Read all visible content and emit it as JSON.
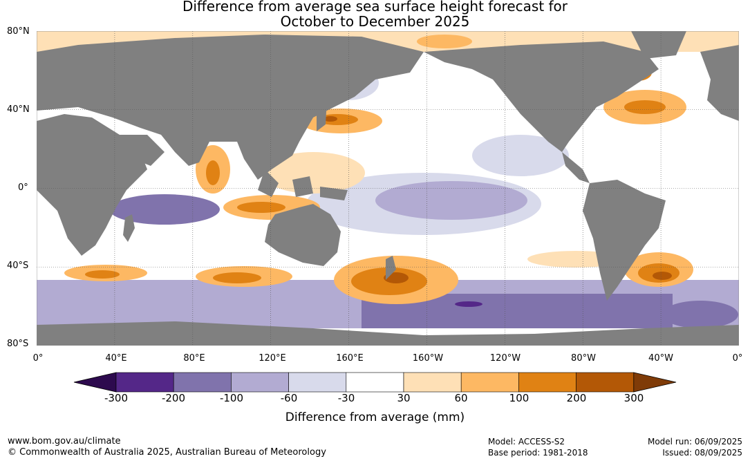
{
  "title_line1": "Difference from average sea surface height forecast for",
  "title_line2": "October to December 2025",
  "lat_labels": [
    "80°N",
    "40°N",
    "0°",
    "40°S",
    "80°S"
  ],
  "lon_labels": [
    "0°",
    "40°E",
    "80°E",
    "120°E",
    "160°E",
    "160°W",
    "120°W",
    "80°W",
    "40°W",
    "0°"
  ],
  "legend": {
    "title": "Difference from average (mm)",
    "ticks": [
      "-300",
      "-200",
      "-100",
      "-60",
      "-30",
      "30",
      "60",
      "100",
      "200",
      "300"
    ],
    "colors": [
      "#2d0a4e",
      "#542788",
      "#8073ac",
      "#b2abd2",
      "#d8daeb",
      "#ffffff",
      "#fee0b6",
      "#fdb863",
      "#e08214",
      "#b35806",
      "#7f3b08"
    ]
  },
  "footer": {
    "url": "www.bom.gov.au/climate",
    "copyright": "© Commonwealth of Australia 2025, Australian Bureau of Meteorology",
    "model": "Model: ACCESS-S2",
    "base_period": "Base period: 1981-2018",
    "model_run": "Model run: 06/09/2025",
    "issued": "Issued: 08/09/2025"
  },
  "colors": {
    "land": "#808080",
    "ocean_neutral": "#ffffff"
  }
}
